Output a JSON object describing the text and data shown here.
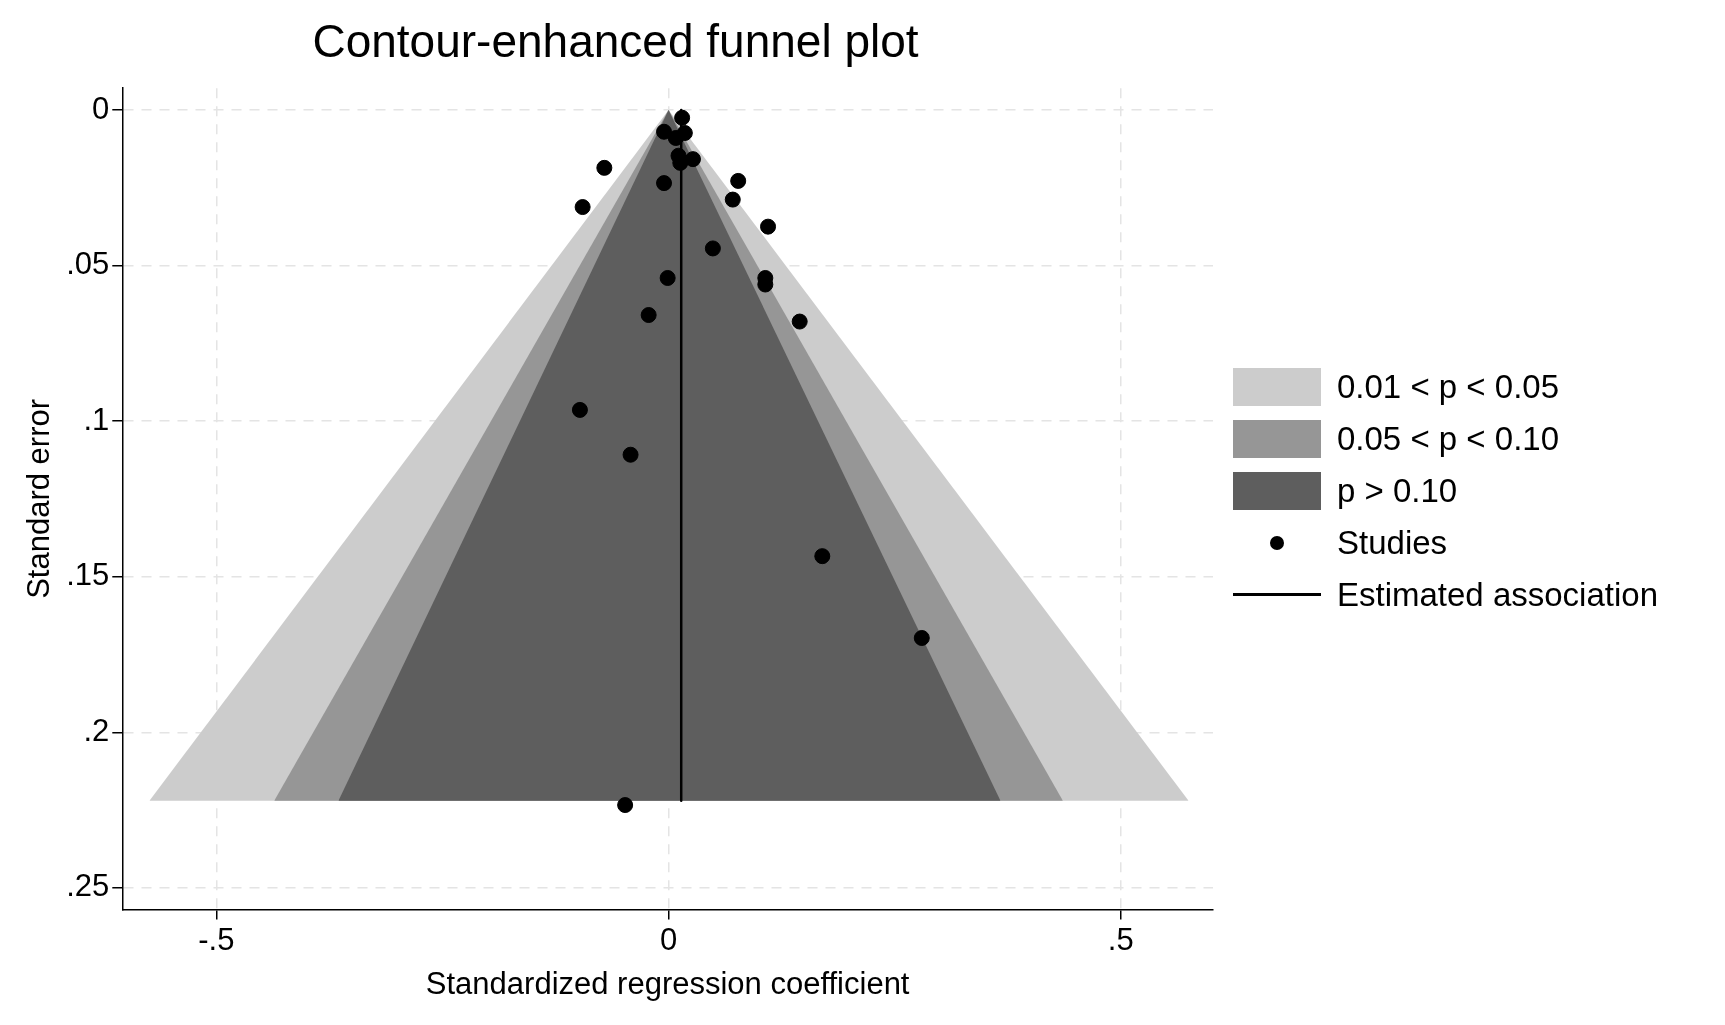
{
  "chart_data": {
    "type": "scatter",
    "title": "Contour-enhanced funnel plot",
    "xlabel": "Standardized regression coefficient",
    "ylabel": "Standard error",
    "xlim": [
      -0.604,
      0.602
    ],
    "ylim": [
      0.257,
      -0.007
    ],
    "xticks": [
      {
        "value": -0.5,
        "label": "-.5"
      },
      0,
      {
        "value": 0.5,
        "label": ".5"
      }
    ],
    "yticks": [
      0,
      {
        "value": 0.05,
        "label": ".05"
      },
      {
        "value": 0.1,
        "label": ".1"
      },
      {
        "value": 0.15,
        "label": ".15"
      },
      {
        "value": 0.2,
        "label": ".2"
      },
      {
        "value": 0.25,
        "label": ".25"
      }
    ],
    "grid": true,
    "legend": "right",
    "series": [
      {
        "name": "0.01 < p < 0.05",
        "type": "area",
        "color": "#cccccc",
        "x": [
          -0.574,
          0,
          0.575
        ],
        "values": [
          0.222,
          0,
          0.222
        ],
        "marker": "none"
      },
      {
        "name": "0.05 < p < 0.10",
        "type": "area",
        "color": "#969696",
        "x": [
          -0.436,
          0,
          0.436
        ],
        "values": [
          0.222,
          0,
          0.222
        ],
        "marker": "none"
      },
      {
        "name": "p > 0.10",
        "type": "area",
        "color": "#5e5e5e",
        "x": [
          -0.365,
          0,
          0.367
        ],
        "values": [
          0.222,
          0,
          0.222
        ],
        "marker": "none"
      },
      {
        "name": "Studies",
        "type": "scatter",
        "color": "#000000",
        "marker": "circle",
        "x": [
          0.015,
          -0.005,
          0.018,
          0.008,
          0.011,
          0.027,
          0.013,
          -0.071,
          0.077,
          -0.005,
          0.071,
          -0.095,
          0.11,
          0.049,
          -0.001,
          0.107,
          0.107,
          -0.022,
          0.145,
          -0.098,
          -0.042,
          0.17,
          0.28,
          -0.048
        ],
        "values": [
          0.0025,
          0.007,
          0.0074,
          0.009,
          0.0147,
          0.0158,
          0.017,
          0.0186,
          0.0228,
          0.0235,
          0.0288,
          0.0312,
          0.0375,
          0.0445,
          0.054,
          0.054,
          0.0561,
          0.0659,
          0.068,
          0.0964,
          0.1108,
          0.1434,
          0.1697,
          0.2234
        ]
      },
      {
        "name": "Estimated association",
        "type": "line",
        "color": "#000000",
        "x": [
          0.014,
          0.014
        ],
        "values": [
          0,
          0.222
        ],
        "marker": "none"
      }
    ]
  }
}
